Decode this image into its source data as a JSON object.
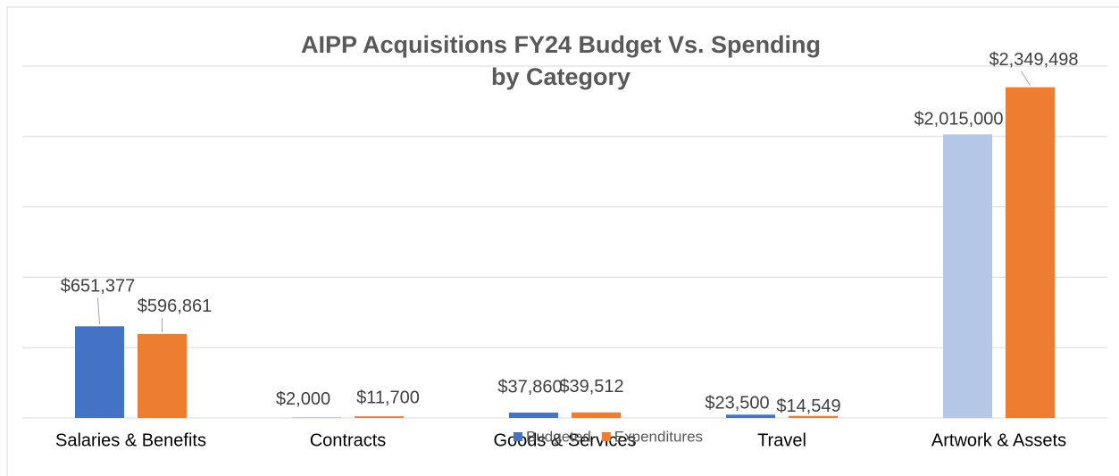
{
  "chart_data": {
    "type": "bar",
    "title": "AIPP Acquisitions FY24 Budget Vs. Spending by Category",
    "categories": [
      "Salaries & Benefits",
      "Contracts",
      "Goods & Services",
      "Travel",
      "Artwork & Assets"
    ],
    "series": [
      {
        "name": "Budgeted",
        "color": "#4472c4",
        "colors": [
          "#4472c4",
          "#4472c4",
          "#4472c4",
          "#4472c4",
          "#b4c7e7"
        ],
        "values": [
          651377,
          2000,
          37860,
          23500,
          2015000
        ],
        "value_labels": [
          "$651,377",
          "$2,000",
          "$37,860",
          "$23,500",
          "$2,015,000"
        ]
      },
      {
        "name": "Expenditures",
        "color": "#ed7d31",
        "values": [
          596861,
          11700,
          39512,
          14549,
          2349498
        ],
        "value_labels": [
          "$596,861",
          "$11,700",
          "$39,512",
          "$14,549",
          "$2,349,498"
        ]
      }
    ],
    "ylim": [
      0,
      2500000
    ],
    "yticks": [
      0,
      500000,
      1000000,
      1500000,
      2000000,
      2500000
    ],
    "grid": true,
    "legend": "bottom"
  }
}
